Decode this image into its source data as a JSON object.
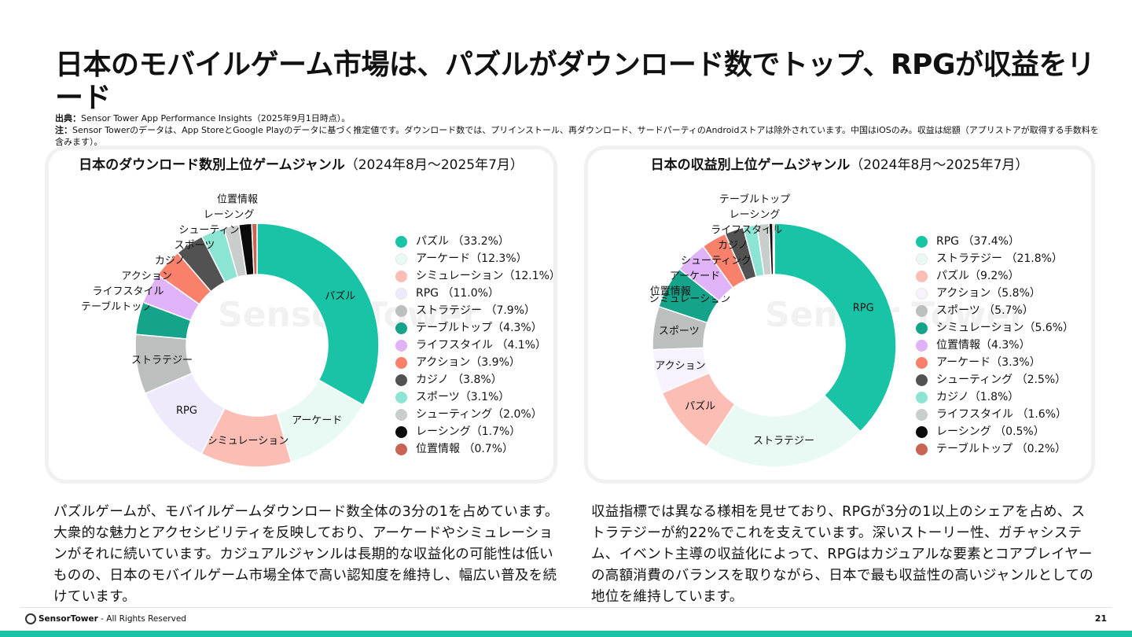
{
  "title": "日本のモバイルゲーム市場は、パズルがダウンロード数でトップ、RPGが収益をリード",
  "source": {
    "label1": "出典：",
    "text1": "Sensor Tower App Performance Insights（2025年9月1日時点）。",
    "label2": "注：",
    "text2": "Sensor Towerのデータは、App StoreとGoogle Playのデータに基づく推定値です。ダウンロード数では、プリインストール、再ダウンロード、サードパーティのAndroidストアは除外されています。中国はiOSのみ。収益は総額（アプリストアが取得する手数料を含みます）。"
  },
  "watermark": "Sensor Tower",
  "chart_data": [
    {
      "type": "donut",
      "title": "日本のダウンロード数別上位ゲームジャンル",
      "period": "（2024年8月～2025年7月）",
      "categories": [
        "パズル",
        "アーケード",
        "シミュレーション",
        "RPG",
        "ストラテジー",
        "テーブルトップ",
        "ライフスタイル",
        "アクション",
        "カジノ",
        "スポーツ",
        "シューティング",
        "レーシング",
        "位置情報"
      ],
      "values": [
        33.2,
        12.3,
        12.1,
        11.0,
        7.9,
        4.3,
        4.1,
        3.9,
        3.8,
        3.1,
        2.0,
        1.7,
        0.7
      ],
      "legend_labels": [
        "パズル （33.2%）",
        "アーケード（12.3%）",
        "シミュレーション（12.1%）",
        "RPG （11.0%）",
        "ストラテジー （7.9%）",
        "テーブルトップ（4.3%）",
        "ライフスタイル （4.1%）",
        "アクション（3.9%）",
        "カジノ （3.8%）",
        "スポーツ（3.1%）",
        "シューティング（2.0%）",
        "レーシング（1.7%）",
        "位置情報 （0.7%）"
      ],
      "colors": [
        "#19c3a5",
        "#e9faf5",
        "#fcbdb5",
        "#efeafb",
        "#bbbfbd",
        "#15a38a",
        "#e0b2f7",
        "#f9816b",
        "#525252",
        "#8ce4d3",
        "#c9cdcb",
        "#0a0a0a",
        "#c96455"
      ],
      "legend_position": "right"
    },
    {
      "type": "donut",
      "title": "日本の収益別上位ゲームジャンル",
      "period": "（2024年8月～2025年7月）",
      "categories": [
        "RPG",
        "ストラテジー",
        "パズル",
        "アクション",
        "スポーツ",
        "シミュレーション",
        "位置情報",
        "アーケード",
        "シューティング",
        "カジノ",
        "ライフスタイル",
        "レーシング",
        "テーブルトップ"
      ],
      "values": [
        37.4,
        21.8,
        9.2,
        5.8,
        5.7,
        5.6,
        4.3,
        3.3,
        2.5,
        1.8,
        1.6,
        0.5,
        0.2
      ],
      "legend_labels": [
        "RPG （37.4%）",
        "ストラテジー （21.8%）",
        "パズル（9.2%）",
        "アクション（5.8%）",
        "スポーツ （5.7%）",
        "シミュレーション（5.6%）",
        "位置情報（4.3%）",
        "アーケード（3.3%）",
        "シューティング （2.5%）",
        "カジノ（1.8%）",
        "ライフスタイル （1.6%）",
        "レーシング （0.5%）",
        "テーブルトップ （0.2%）"
      ],
      "colors": [
        "#19c3a5",
        "#e9faf5",
        "#fcbdb5",
        "#f7f2fd",
        "#bbbfbd",
        "#15a38a",
        "#e0b2f7",
        "#f9816b",
        "#525252",
        "#8ce4d3",
        "#c9cdcb",
        "#0a0a0a",
        "#c96455"
      ],
      "legend_position": "right"
    }
  ],
  "body": {
    "left": "パズルゲームが、モバイルゲームダウンロード数全体の3分の1を占めています。大衆的な魅力とアクセシビリティを反映しており、アーケードやシミュレーションがそれに続いています。カジュアルジャンルは長期的な収益化の可能性は低いものの、日本のモバイルゲーム市場全体で高い認知度を維持し、幅広い普及を続けています。",
    "right": "収益指標では異なる様相を見せており、RPGが3分の1以上のシェアを占め、ストラテジーが約22%でこれを支えています。深いストーリー性、ガチャシステム、イベント主導の収益化によって、RPGはカジュアルな要素とコアプレイヤーの高額消費のバランスを取りながら、日本で最も収益性の高いジャンルとしての地位を維持しています。"
  },
  "footer": {
    "brand": "SensorTower",
    "rights": "- All Rights Reserved",
    "page": "21"
  }
}
